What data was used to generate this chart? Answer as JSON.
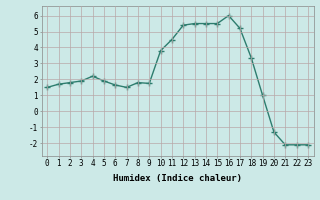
{
  "x": [
    0,
    1,
    2,
    3,
    4,
    5,
    6,
    7,
    8,
    9,
    10,
    11,
    12,
    13,
    14,
    15,
    16,
    17,
    18,
    19,
    20,
    21,
    22,
    23
  ],
  "y": [
    1.5,
    1.7,
    1.8,
    1.9,
    2.2,
    1.9,
    1.65,
    1.5,
    1.8,
    1.75,
    3.8,
    4.5,
    5.4,
    5.5,
    5.5,
    5.5,
    6.0,
    5.2,
    3.35,
    1.0,
    -1.3,
    -2.1,
    -2.1,
    -2.1
  ],
  "line_color": "#2d7d6e",
  "marker": "+",
  "marker_size": 4,
  "background_color": "#cce9e7",
  "grid_color": "#b8a8a8",
  "xlabel": "Humidex (Indice chaleur)",
  "xlim": [
    -0.5,
    23.5
  ],
  "ylim": [
    -2.8,
    6.6
  ],
  "yticks": [
    -2,
    -1,
    0,
    1,
    2,
    3,
    4,
    5,
    6
  ],
  "xticks": [
    0,
    1,
    2,
    3,
    4,
    5,
    6,
    7,
    8,
    9,
    10,
    11,
    12,
    13,
    14,
    15,
    16,
    17,
    18,
    19,
    20,
    21,
    22,
    23
  ],
  "xtick_labels": [
    "0",
    "1",
    "2",
    "3",
    "4",
    "5",
    "6",
    "7",
    "8",
    "9",
    "10",
    "11",
    "12",
    "13",
    "14",
    "15",
    "16",
    "17",
    "18",
    "19",
    "20",
    "21",
    "22",
    "23"
  ],
  "label_fontsize": 6.5,
  "tick_fontsize": 5.5,
  "linewidth": 1.0,
  "marker_linewidth": 1.0
}
